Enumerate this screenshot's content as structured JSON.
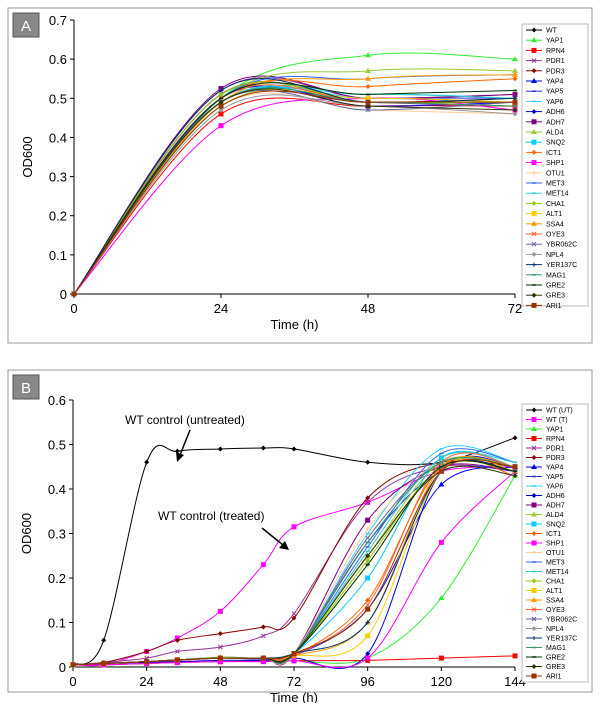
{
  "chart_data": [
    {
      "panel": "A",
      "type": "line",
      "xlabel": "Time (h)",
      "ylabel": "OD600",
      "xlim": [
        0,
        72
      ],
      "ylim": [
        0,
        0.7
      ],
      "xticks": [
        0,
        24,
        48,
        72
      ],
      "yticks": [
        0,
        0.1,
        0.2,
        0.3,
        0.4,
        0.5,
        0.6,
        0.7
      ],
      "legend": "right",
      "x": [
        0,
        24,
        48,
        72
      ],
      "series": [
        {
          "name": "WT",
          "color": "#000000",
          "marker": "diamond",
          "values": [
            0,
            0.49,
            0.49,
            0.49
          ]
        },
        {
          "name": "YAP1",
          "color": "#33ee33",
          "marker": "triangle",
          "values": [
            0,
            0.5,
            0.61,
            0.6
          ]
        },
        {
          "name": "RPN4",
          "color": "#ff0000",
          "marker": "square",
          "values": [
            0,
            0.46,
            0.48,
            0.48
          ]
        },
        {
          "name": "PDR1",
          "color": "#993399",
          "marker": "x",
          "values": [
            0,
            0.52,
            0.5,
            0.51
          ]
        },
        {
          "name": "PDR3",
          "color": "#880000",
          "marker": "diamond",
          "values": [
            0,
            0.51,
            0.49,
            0.5
          ]
        },
        {
          "name": "YAP4",
          "color": "#0000ff",
          "marker": "triangle",
          "values": [
            0,
            0.5,
            0.48,
            0.49
          ]
        },
        {
          "name": "YAP5",
          "color": "#3333cc",
          "marker": "dash",
          "values": [
            0,
            0.49,
            0.5,
            0.5
          ]
        },
        {
          "name": "YAP6",
          "color": "#33ccff",
          "marker": "dash",
          "values": [
            0,
            0.48,
            0.51,
            0.5
          ]
        },
        {
          "name": "ADH6",
          "color": "#0000cc",
          "marker": "diamond",
          "values": [
            0,
            0.51,
            0.49,
            0.48
          ]
        },
        {
          "name": "ADH7",
          "color": "#800080",
          "marker": "square",
          "values": [
            0,
            0.525,
            0.5,
            0.51
          ]
        },
        {
          "name": "ALD4",
          "color": "#99cc33",
          "marker": "triangle",
          "values": [
            0,
            0.5,
            0.57,
            0.57
          ]
        },
        {
          "name": "SNQ2",
          "color": "#00ccff",
          "marker": "square",
          "values": [
            0,
            0.49,
            0.5,
            0.49
          ]
        },
        {
          "name": "ICT1",
          "color": "#ff6600",
          "marker": "diamond",
          "values": [
            0,
            0.5,
            0.53,
            0.55
          ]
        },
        {
          "name": "SHP1",
          "color": "#ff00ff",
          "marker": "square",
          "values": [
            0,
            0.43,
            0.5,
            0.47
          ]
        },
        {
          "name": "OTU1",
          "color": "#ffcc99",
          "marker": "plus",
          "values": [
            0,
            0.48,
            0.47,
            0.46
          ]
        },
        {
          "name": "MET3",
          "color": "#3366ff",
          "marker": "dash",
          "values": [
            0,
            0.5,
            0.55,
            0.56
          ]
        },
        {
          "name": "MET14",
          "color": "#33cccc",
          "marker": "dash",
          "values": [
            0,
            0.49,
            0.51,
            0.5
          ]
        },
        {
          "name": "CHA1",
          "color": "#99cc00",
          "marker": "diamond",
          "values": [
            0,
            0.51,
            0.49,
            0.49
          ]
        },
        {
          "name": "ALT1",
          "color": "#ffcc00",
          "marker": "square",
          "values": [
            0,
            0.48,
            0.5,
            0.49
          ]
        },
        {
          "name": "SSA4",
          "color": "#ff9900",
          "marker": "triangle",
          "values": [
            0,
            0.49,
            0.55,
            0.56
          ]
        },
        {
          "name": "OYE3",
          "color": "#ff6633",
          "marker": "x",
          "values": [
            0,
            0.5,
            0.49,
            0.48
          ]
        },
        {
          "name": "YBR062C",
          "color": "#666699",
          "marker": "x",
          "values": [
            0,
            0.49,
            0.47,
            0.49
          ]
        },
        {
          "name": "NPL4",
          "color": "#999999",
          "marker": "diamond",
          "values": [
            0,
            0.47,
            0.48,
            0.46
          ]
        },
        {
          "name": "YER137C",
          "color": "#003366",
          "marker": "plus",
          "values": [
            0,
            0.52,
            0.49,
            0.5
          ]
        },
        {
          "name": "MAG1",
          "color": "#339966",
          "marker": "dash",
          "values": [
            0,
            0.49,
            0.49,
            0.48
          ]
        },
        {
          "name": "GRE2",
          "color": "#003300",
          "marker": "dash",
          "values": [
            0,
            0.5,
            0.51,
            0.52
          ]
        },
        {
          "name": "GRE3",
          "color": "#333300",
          "marker": "diamond",
          "values": [
            0,
            0.49,
            0.48,
            0.47
          ]
        },
        {
          "name": "ARI1",
          "color": "#993300",
          "marker": "square",
          "values": [
            0,
            0.48,
            0.49,
            0.49
          ]
        }
      ]
    },
    {
      "panel": "B",
      "type": "line",
      "xlabel": "Time (h)",
      "ylabel": "OD600",
      "xlim": [
        0,
        144
      ],
      "ylim": [
        0,
        0.6
      ],
      "xticks": [
        0,
        24,
        48,
        72,
        96,
        120,
        144
      ],
      "yticks": [
        0,
        0.1,
        0.2,
        0.3,
        0.4,
        0.5,
        0.6
      ],
      "legend": "right",
      "annotations": [
        "WT control (untreated)",
        "WT control (treated)"
      ],
      "x": [
        0,
        10,
        24,
        34,
        48,
        62,
        72,
        96,
        120,
        144
      ],
      "series": [
        {
          "name": "WT (UT)",
          "color": "#000000",
          "marker": "diamond",
          "values": [
            0.005,
            0.06,
            0.46,
            0.485,
            0.49,
            0.492,
            0.49,
            0.46,
            0.46,
            0.515
          ]
        },
        {
          "name": "WT (T)",
          "color": "#ff00ff",
          "marker": "square",
          "values": [
            0.005,
            0.005,
            0.035,
            0.065,
            0.125,
            0.23,
            0.315,
            0.37,
            0.44,
            0.45
          ]
        },
        {
          "name": "YAP1",
          "color": "#33ee33",
          "marker": "triangle",
          "values": [
            0.005,
            0.005,
            0.008,
            0.01,
            0.012,
            0.013,
            0.014,
            0.02,
            0.155,
            0.43
          ]
        },
        {
          "name": "RPN4",
          "color": "#ff0000",
          "marker": "square",
          "values": [
            0.005,
            0.005,
            0.008,
            0.01,
            0.012,
            0.013,
            0.014,
            0.015,
            0.02,
            0.025
          ]
        },
        {
          "name": "PDR1",
          "color": "#993399",
          "marker": "x",
          "values": [
            0.005,
            0.01,
            0.02,
            0.035,
            0.045,
            0.07,
            0.12,
            0.37,
            0.45,
            0.44
          ]
        },
        {
          "name": "PDR3",
          "color": "#880000",
          "marker": "diamond",
          "values": [
            0.005,
            0.01,
            0.035,
            0.06,
            0.075,
            0.09,
            0.11,
            0.38,
            0.46,
            0.45
          ]
        },
        {
          "name": "YAP4",
          "color": "#0000ff",
          "marker": "triangle",
          "values": [
            0.005,
            0.008,
            0.012,
            0.015,
            0.02,
            0.018,
            0.025,
            0.13,
            0.41,
            0.45
          ]
        },
        {
          "name": "YAP5",
          "color": "#3333cc",
          "marker": "dash",
          "values": [
            0.005,
            0.008,
            0.012,
            0.016,
            0.022,
            0.02,
            0.03,
            0.28,
            0.44,
            0.44
          ]
        },
        {
          "name": "YAP6",
          "color": "#33ccff",
          "marker": "dash",
          "values": [
            0.005,
            0.008,
            0.012,
            0.015,
            0.02,
            0.02,
            0.03,
            0.3,
            0.49,
            0.46
          ]
        },
        {
          "name": "ADH6",
          "color": "#0000cc",
          "marker": "diamond",
          "values": [
            0.005,
            0.008,
            0.01,
            0.012,
            0.015,
            0.015,
            0.02,
            0.03,
            0.44,
            0.45
          ]
        },
        {
          "name": "ADH7",
          "color": "#800080",
          "marker": "square",
          "values": [
            0.005,
            0.008,
            0.012,
            0.015,
            0.02,
            0.02,
            0.03,
            0.33,
            0.45,
            0.44
          ]
        },
        {
          "name": "ALD4",
          "color": "#99cc33",
          "marker": "triangle",
          "values": [
            0.005,
            0.008,
            0.012,
            0.016,
            0.022,
            0.02,
            0.03,
            0.25,
            0.46,
            0.45
          ]
        },
        {
          "name": "SNQ2",
          "color": "#00ccff",
          "marker": "square",
          "values": [
            0.005,
            0.008,
            0.012,
            0.016,
            0.02,
            0.02,
            0.03,
            0.2,
            0.47,
            0.45
          ]
        },
        {
          "name": "ICT1",
          "color": "#ff6600",
          "marker": "diamond",
          "values": [
            0.005,
            0.008,
            0.012,
            0.015,
            0.02,
            0.02,
            0.025,
            0.15,
            0.45,
            0.43
          ]
        },
        {
          "name": "SHP1",
          "color": "#ff00ff",
          "marker": "square",
          "values": [
            0.005,
            0.005,
            0.008,
            0.01,
            0.012,
            0.012,
            0.014,
            0.02,
            0.28,
            0.44
          ]
        },
        {
          "name": "OTU1",
          "color": "#ffcc99",
          "marker": "plus",
          "values": [
            0.005,
            0.008,
            0.012,
            0.016,
            0.02,
            0.02,
            0.03,
            0.31,
            0.46,
            0.45
          ]
        },
        {
          "name": "MET3",
          "color": "#3366ff",
          "marker": "dash",
          "values": [
            0.005,
            0.008,
            0.012,
            0.016,
            0.02,
            0.02,
            0.03,
            0.27,
            0.48,
            0.46
          ]
        },
        {
          "name": "MET14",
          "color": "#33cccc",
          "marker": "dash",
          "values": [
            0.005,
            0.008,
            0.012,
            0.016,
            0.02,
            0.02,
            0.03,
            0.26,
            0.47,
            0.46
          ]
        },
        {
          "name": "CHA1",
          "color": "#99cc00",
          "marker": "diamond",
          "values": [
            0.005,
            0.008,
            0.012,
            0.016,
            0.02,
            0.02,
            0.03,
            0.24,
            0.45,
            0.44
          ]
        },
        {
          "name": "ALT1",
          "color": "#ffcc00",
          "marker": "square",
          "values": [
            0.005,
            0.008,
            0.012,
            0.016,
            0.02,
            0.02,
            0.025,
            0.07,
            0.44,
            0.45
          ]
        },
        {
          "name": "SSA4",
          "color": "#ff9900",
          "marker": "triangle",
          "values": [
            0.005,
            0.008,
            0.012,
            0.016,
            0.02,
            0.02,
            0.025,
            0.1,
            0.45,
            0.44
          ]
        },
        {
          "name": "OYE3",
          "color": "#ff6633",
          "marker": "x",
          "values": [
            0.005,
            0.008,
            0.012,
            0.016,
            0.02,
            0.02,
            0.025,
            0.14,
            0.46,
            0.45
          ]
        },
        {
          "name": "YBR062C",
          "color": "#666699",
          "marker": "x",
          "values": [
            0.005,
            0.008,
            0.012,
            0.016,
            0.02,
            0.02,
            0.03,
            0.29,
            0.46,
            0.45
          ]
        },
        {
          "name": "NPL4",
          "color": "#999999",
          "marker": "diamond",
          "values": [
            0.005,
            0.008,
            0.012,
            0.016,
            0.02,
            0.02,
            0.03,
            0.23,
            0.45,
            0.44
          ]
        },
        {
          "name": "YER137C",
          "color": "#003366",
          "marker": "plus",
          "values": [
            0.005,
            0.008,
            0.012,
            0.016,
            0.02,
            0.02,
            0.03,
            0.1,
            0.44,
            0.44
          ]
        },
        {
          "name": "MAG1",
          "color": "#339966",
          "marker": "dash",
          "values": [
            0.005,
            0.008,
            0.012,
            0.016,
            0.02,
            0.02,
            0.03,
            0.28,
            0.46,
            0.45
          ]
        },
        {
          "name": "GRE2",
          "color": "#003300",
          "marker": "dash",
          "values": [
            0.005,
            0.008,
            0.012,
            0.016,
            0.02,
            0.02,
            0.03,
            0.23,
            0.45,
            0.44
          ]
        },
        {
          "name": "GRE3",
          "color": "#333300",
          "marker": "diamond",
          "values": [
            0.005,
            0.008,
            0.012,
            0.016,
            0.02,
            0.02,
            0.03,
            0.25,
            0.44,
            0.43
          ]
        },
        {
          "name": "ARI1",
          "color": "#993300",
          "marker": "square",
          "values": [
            0.005,
            0.008,
            0.012,
            0.016,
            0.02,
            0.02,
            0.03,
            0.13,
            0.44,
            0.45
          ]
        }
      ]
    }
  ]
}
